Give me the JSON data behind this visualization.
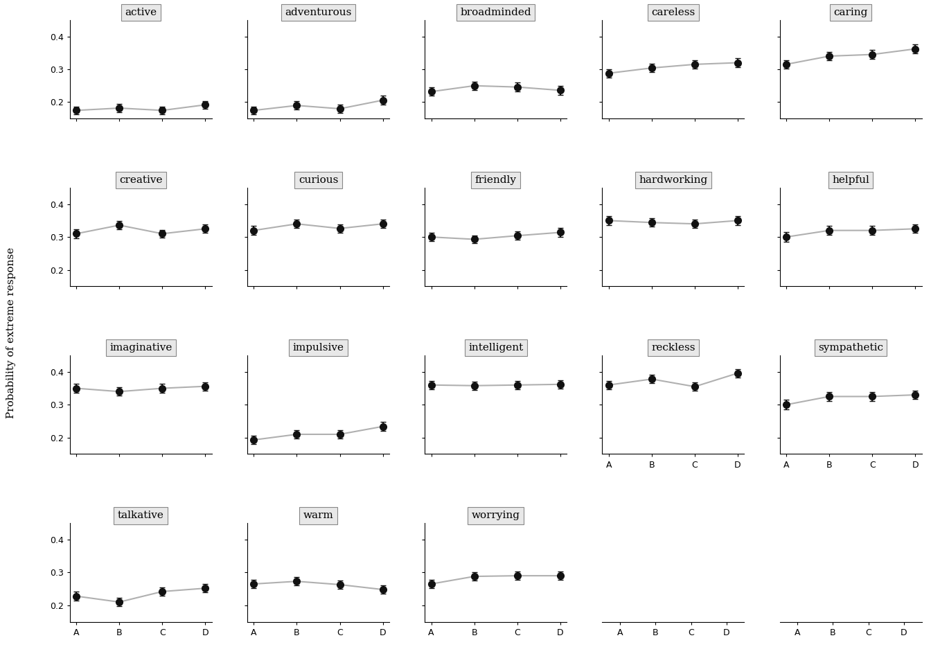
{
  "items": [
    {
      "name": "active",
      "values": [
        0.175,
        0.182,
        0.175,
        0.192
      ],
      "errors": [
        0.012,
        0.012,
        0.012,
        0.012
      ]
    },
    {
      "name": "adventurous",
      "values": [
        0.175,
        0.19,
        0.18,
        0.206
      ],
      "errors": [
        0.012,
        0.013,
        0.012,
        0.013
      ]
    },
    {
      "name": "broadminded",
      "values": [
        0.232,
        0.25,
        0.246,
        0.236
      ],
      "errors": [
        0.013,
        0.013,
        0.013,
        0.013
      ]
    },
    {
      "name": "careless",
      "values": [
        0.288,
        0.304,
        0.315,
        0.32
      ],
      "errors": [
        0.013,
        0.013,
        0.013,
        0.013
      ]
    },
    {
      "name": "caring",
      "values": [
        0.315,
        0.34,
        0.345,
        0.362
      ],
      "errors": [
        0.013,
        0.013,
        0.013,
        0.013
      ]
    },
    {
      "name": "creative",
      "values": [
        0.31,
        0.336,
        0.31,
        0.325
      ],
      "errors": [
        0.013,
        0.013,
        0.012,
        0.013
      ]
    },
    {
      "name": "curious",
      "values": [
        0.32,
        0.34,
        0.326,
        0.34
      ],
      "errors": [
        0.013,
        0.013,
        0.013,
        0.013
      ]
    },
    {
      "name": "friendly",
      "values": [
        0.3,
        0.293,
        0.304,
        0.314
      ],
      "errors": [
        0.013,
        0.012,
        0.013,
        0.013
      ]
    },
    {
      "name": "hardworking",
      "values": [
        0.35,
        0.344,
        0.34,
        0.35
      ],
      "errors": [
        0.013,
        0.013,
        0.013,
        0.013
      ]
    },
    {
      "name": "helpful",
      "values": [
        0.3,
        0.32,
        0.32,
        0.325
      ],
      "errors": [
        0.015,
        0.013,
        0.013,
        0.013
      ]
    },
    {
      "name": "imaginative",
      "values": [
        0.35,
        0.34,
        0.35,
        0.356
      ],
      "errors": [
        0.013,
        0.013,
        0.013,
        0.013
      ]
    },
    {
      "name": "impulsive",
      "values": [
        0.193,
        0.21,
        0.21,
        0.234
      ],
      "errors": [
        0.013,
        0.013,
        0.013,
        0.013
      ]
    },
    {
      "name": "intelligent",
      "values": [
        0.36,
        0.358,
        0.36,
        0.362
      ],
      "errors": [
        0.013,
        0.013,
        0.013,
        0.013
      ]
    },
    {
      "name": "reckless",
      "values": [
        0.36,
        0.378,
        0.355,
        0.396
      ],
      "errors": [
        0.013,
        0.013,
        0.013,
        0.013
      ]
    },
    {
      "name": "sympathetic",
      "values": [
        0.3,
        0.325,
        0.325,
        0.33
      ],
      "errors": [
        0.015,
        0.013,
        0.013,
        0.013
      ]
    },
    {
      "name": "talkative",
      "values": [
        0.228,
        0.21,
        0.242,
        0.252
      ],
      "errors": [
        0.013,
        0.012,
        0.013,
        0.013
      ]
    },
    {
      "name": "warm",
      "values": [
        0.265,
        0.273,
        0.263,
        0.248
      ],
      "errors": [
        0.013,
        0.013,
        0.013,
        0.013
      ]
    },
    {
      "name": "worrying",
      "values": [
        0.265,
        0.288,
        0.29,
        0.29
      ],
      "errors": [
        0.013,
        0.013,
        0.013,
        0.013
      ]
    }
  ],
  "x_labels": [
    "A",
    "B",
    "C",
    "D"
  ],
  "ylabel": "Probability of extreme response",
  "ylim": [
    0.15,
    0.45
  ],
  "yticks": [
    0.2,
    0.3,
    0.4
  ],
  "layout": [
    [
      "active",
      "adventurous",
      "broadminded",
      "careless",
      "caring"
    ],
    [
      "creative",
      "curious",
      "friendly",
      "hardworking",
      "helpful"
    ],
    [
      "imaginative",
      "impulsive",
      "intelligent",
      "reckless",
      "sympathetic"
    ],
    [
      "talkative",
      "warm",
      "worrying",
      null,
      null
    ]
  ],
  "line_color": "#b0b0b0",
  "marker_color": "#111111",
  "marker_size": 7,
  "error_color": "#111111",
  "header_facecolor": "#e8e8e8",
  "header_edgecolor": "#888888",
  "background_color": "#ffffff",
  "title_fontsize": 11,
  "tick_fontsize": 9,
  "ylabel_fontsize": 11
}
